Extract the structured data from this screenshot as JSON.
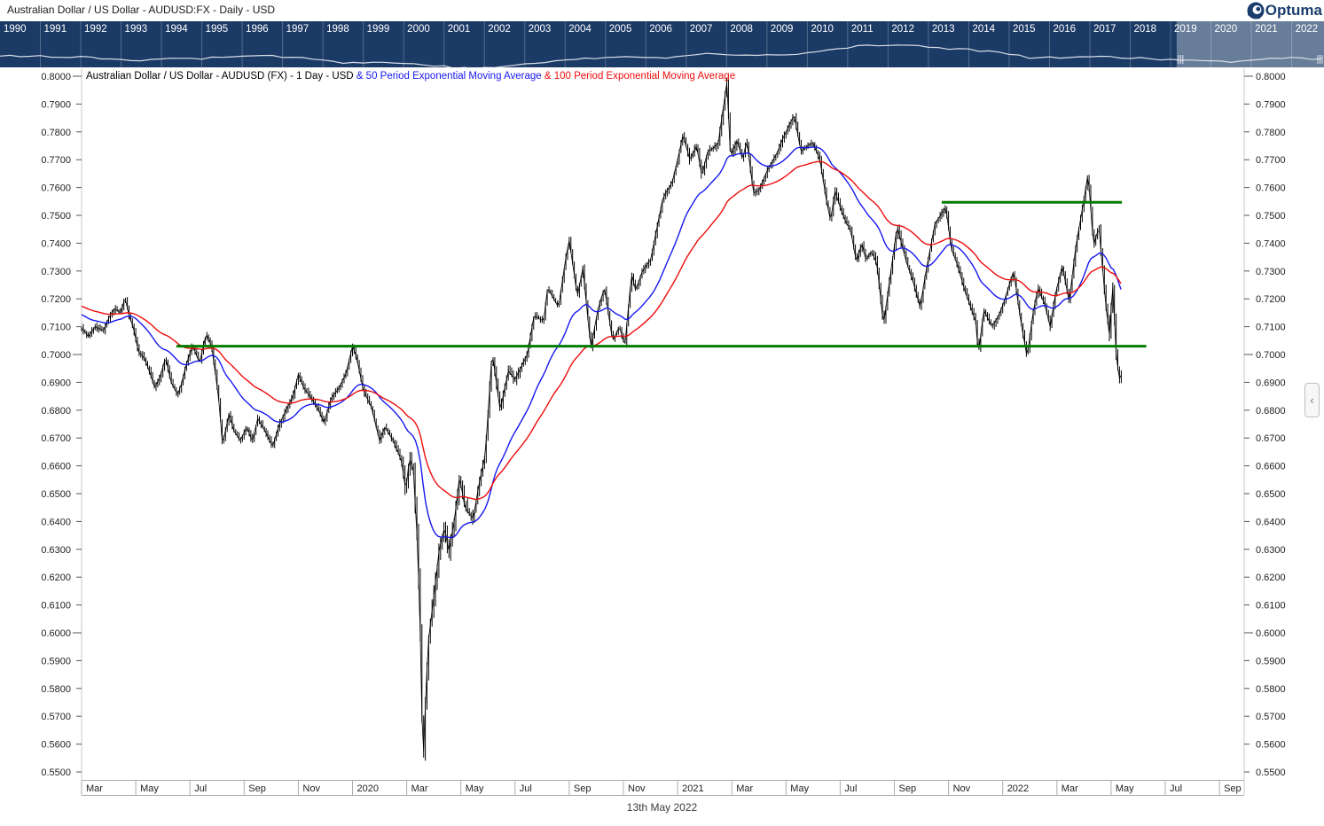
{
  "window": {
    "title": "Australian Dollar / US Dollar - AUDUSD:FX - Daily - USD",
    "logo_text": "Optuma"
  },
  "timeline": {
    "years": [
      1990,
      1991,
      1992,
      1993,
      1994,
      1995,
      1996,
      1997,
      1998,
      1999,
      2000,
      2001,
      2002,
      2003,
      2004,
      2005,
      2006,
      2007,
      2008,
      2009,
      2010,
      2011,
      2012,
      2013,
      2014,
      2015,
      2016,
      2017,
      2018,
      2019,
      2020,
      2021,
      2022
    ],
    "sparkline_yearly_values": [
      0.78,
      0.775,
      0.74,
      0.675,
      0.73,
      0.745,
      0.785,
      0.75,
      0.625,
      0.65,
      0.575,
      0.51,
      0.545,
      0.655,
      0.73,
      0.765,
      0.75,
      0.84,
      0.8,
      0.79,
      0.91,
      1.03,
      1.035,
      0.96,
      0.885,
      0.75,
      0.745,
      0.765,
      0.725,
      0.7,
      0.63,
      0.75,
      0.72
    ],
    "selection": {
      "start_year_fraction": 2019.15,
      "end_year_fraction": 2022.85
    },
    "colors": {
      "band": "#1b3a66",
      "separator": "rgba(255,255,255,0.25)",
      "sparkline": "#d9dee5",
      "highlight": "rgba(255,255,255,0.34)",
      "label": "#ffffff"
    }
  },
  "chart": {
    "title_segments": [
      {
        "text": "Australian Dollar / US Dollar - AUDUSD (FX) - 1 Day - USD ",
        "color": "#000000"
      },
      {
        "text": "& 50 Period Exponential Moving Average ",
        "color": "#1717ef"
      },
      {
        "text": "& 100 Period Exponential Moving Average",
        "color": "#ee0c0c"
      }
    ],
    "y_axis_labels": [
      "0.8000",
      "0.7900",
      "0.7800",
      "0.7700",
      "0.7600",
      "0.7500",
      "0.7400",
      "0.7300",
      "0.7200",
      "0.7100",
      "0.7000",
      "0.6900",
      "0.6800",
      "0.6700",
      "0.6600",
      "0.6500",
      "0.6400",
      "0.6300",
      "0.6200",
      "0.6100",
      "0.6000",
      "0.5900",
      "0.5800",
      "0.5700",
      "0.5600",
      "0.5500"
    ],
    "x_axis_labels": [
      {
        "m": 0,
        "label": "Mar"
      },
      {
        "m": 2,
        "label": "May"
      },
      {
        "m": 4,
        "label": "Jul"
      },
      {
        "m": 6,
        "label": "Sep"
      },
      {
        "m": 8,
        "label": "Nov"
      },
      {
        "m": 10,
        "label": "2020"
      },
      {
        "m": 12,
        "label": "Mar"
      },
      {
        "m": 14,
        "label": "May"
      },
      {
        "m": 16,
        "label": "Jul"
      },
      {
        "m": 18,
        "label": "Sep"
      },
      {
        "m": 20,
        "label": "Nov"
      },
      {
        "m": 22,
        "label": "2021"
      },
      {
        "m": 24,
        "label": "Mar"
      },
      {
        "m": 26,
        "label": "May"
      },
      {
        "m": 28,
        "label": "Jul"
      },
      {
        "m": 30,
        "label": "Sep"
      },
      {
        "m": 32,
        "label": "Nov"
      },
      {
        "m": 34,
        "label": "2022"
      },
      {
        "m": 36,
        "label": "Mar"
      },
      {
        "m": 38,
        "label": "May"
      },
      {
        "m": 40,
        "label": "Jul"
      },
      {
        "m": 42,
        "label": "Sep"
      }
    ],
    "footer_date": "13th May 2022",
    "colors": {
      "bars": "#000000",
      "ema50": "#1717ef",
      "ema100": "#ee0c0c",
      "level_line": "#007c00",
      "axis_text": "#222222",
      "axis_line": "#c8c8c8",
      "band_border": "#adadad"
    }
  },
  "side_button": {
    "chevron": "‹"
  },
  "chart_data": {
    "type": "line",
    "style": "daily OHLC bar chart (black) with EMA overlays",
    "instrument": "AUDUSD",
    "x_unit": "months since 2019-03-01",
    "ylim": [
      0.55,
      0.8
    ],
    "x_visible_range_months": [
      0,
      43.2
    ],
    "series": [
      {
        "name": "AUDUSD close (sampled)",
        "points": [
          [
            0,
            0.7095
          ],
          [
            0.25,
            0.7065
          ],
          [
            0.5,
            0.71
          ],
          [
            0.8,
            0.7085
          ],
          [
            1,
            0.713
          ],
          [
            1.2,
            0.7165
          ],
          [
            1.45,
            0.715
          ],
          [
            1.6,
            0.7205
          ],
          [
            1.75,
            0.714
          ],
          [
            1.9,
            0.71
          ],
          [
            2.1,
            0.701
          ],
          [
            2.3,
            0.699
          ],
          [
            2.5,
            0.694
          ],
          [
            2.7,
            0.688
          ],
          [
            2.9,
            0.692
          ],
          [
            3.1,
            0.699
          ],
          [
            3.3,
            0.69
          ],
          [
            3.55,
            0.6855
          ],
          [
            3.7,
            0.69
          ],
          [
            3.85,
            0.696
          ],
          [
            4.1,
            0.7035
          ],
          [
            4.35,
            0.697
          ],
          [
            4.6,
            0.7075
          ],
          [
            4.8,
            0.703
          ],
          [
            5.05,
            0.685
          ],
          [
            5.2,
            0.6677
          ],
          [
            5.45,
            0.679
          ],
          [
            5.6,
            0.673
          ],
          [
            5.85,
            0.669
          ],
          [
            6.1,
            0.674
          ],
          [
            6.3,
            0.6688
          ],
          [
            6.5,
            0.677
          ],
          [
            6.8,
            0.672
          ],
          [
            7.05,
            0.667
          ],
          [
            7.3,
            0.675
          ],
          [
            7.55,
            0.68
          ],
          [
            7.8,
            0.685
          ],
          [
            8,
            0.6929
          ],
          [
            8.2,
            0.688
          ],
          [
            8.5,
            0.684
          ],
          [
            8.75,
            0.68
          ],
          [
            8.95,
            0.6754
          ],
          [
            9.2,
            0.684
          ],
          [
            9.5,
            0.688
          ],
          [
            9.75,
            0.693
          ],
          [
            10,
            0.703
          ],
          [
            10.15,
            0.699
          ],
          [
            10.4,
            0.687
          ],
          [
            10.7,
            0.681
          ],
          [
            11,
            0.669
          ],
          [
            11.2,
            0.674
          ],
          [
            11.5,
            0.669
          ],
          [
            11.8,
            0.662
          ],
          [
            11.97,
            0.651
          ],
          [
            12.1,
            0.663
          ],
          [
            12.25,
            0.658
          ],
          [
            12.4,
            0.631
          ],
          [
            12.5,
            0.6
          ],
          [
            12.6,
            0.551
          ],
          [
            12.7,
            0.577
          ],
          [
            12.8,
            0.597
          ],
          [
            13,
            0.613
          ],
          [
            13.2,
            0.63
          ],
          [
            13.4,
            0.638
          ],
          [
            13.55,
            0.629
          ],
          [
            13.75,
            0.64
          ],
          [
            13.95,
            0.656
          ],
          [
            14.15,
            0.645
          ],
          [
            14.45,
            0.641
          ],
          [
            14.7,
            0.655
          ],
          [
            14.9,
            0.664
          ],
          [
            15.15,
            0.701
          ],
          [
            15.45,
            0.68
          ],
          [
            15.75,
            0.694
          ],
          [
            16,
            0.691
          ],
          [
            16.45,
            0.7
          ],
          [
            16.7,
            0.714
          ],
          [
            17.05,
            0.712
          ],
          [
            17.2,
            0.724
          ],
          [
            17.6,
            0.717
          ],
          [
            17.9,
            0.7365
          ],
          [
            18,
            0.741
          ],
          [
            18.3,
            0.721
          ],
          [
            18.5,
            0.731
          ],
          [
            18.8,
            0.702
          ],
          [
            19.05,
            0.716
          ],
          [
            19.3,
            0.724
          ],
          [
            19.6,
            0.705
          ],
          [
            19.85,
            0.71
          ],
          [
            20.05,
            0.703
          ],
          [
            20.3,
            0.729
          ],
          [
            20.45,
            0.723
          ],
          [
            20.7,
            0.73
          ],
          [
            21,
            0.734
          ],
          [
            21.45,
            0.756
          ],
          [
            21.8,
            0.762
          ],
          [
            22,
            0.77
          ],
          [
            22.2,
            0.779
          ],
          [
            22.45,
            0.77
          ],
          [
            22.7,
            0.775
          ],
          [
            22.9,
            0.764
          ],
          [
            23.1,
            0.773
          ],
          [
            23.3,
            0.774
          ],
          [
            23.5,
            0.776
          ],
          [
            23.82,
            0.798
          ],
          [
            23.95,
            0.771
          ],
          [
            24.2,
            0.777
          ],
          [
            24.4,
            0.77
          ],
          [
            24.55,
            0.777
          ],
          [
            24.8,
            0.758
          ],
          [
            25,
            0.759
          ],
          [
            25.3,
            0.766
          ],
          [
            25.65,
            0.772
          ],
          [
            25.9,
            0.778
          ],
          [
            26.3,
            0.786
          ],
          [
            26.55,
            0.773
          ],
          [
            26.8,
            0.775
          ],
          [
            27,
            0.776
          ],
          [
            27.25,
            0.77
          ],
          [
            27.5,
            0.755
          ],
          [
            27.65,
            0.748
          ],
          [
            27.8,
            0.759
          ],
          [
            28,
            0.753
          ],
          [
            28.15,
            0.749
          ],
          [
            28.4,
            0.744
          ],
          [
            28.6,
            0.733
          ],
          [
            28.8,
            0.74
          ],
          [
            28.95,
            0.734
          ],
          [
            29.15,
            0.737
          ],
          [
            29.35,
            0.733
          ],
          [
            29.6,
            0.7106
          ],
          [
            29.8,
            0.725
          ],
          [
            30.1,
            0.746
          ],
          [
            30.45,
            0.733
          ],
          [
            30.7,
            0.726
          ],
          [
            30.95,
            0.717
          ],
          [
            31.15,
            0.729
          ],
          [
            31.5,
            0.747
          ],
          [
            31.9,
            0.753
          ],
          [
            32.1,
            0.738
          ],
          [
            32.3,
            0.733
          ],
          [
            32.6,
            0.723
          ],
          [
            33,
            0.712
          ],
          [
            33.1,
            0.7
          ],
          [
            33.3,
            0.716
          ],
          [
            33.6,
            0.71
          ],
          [
            33.85,
            0.714
          ],
          [
            34.05,
            0.719
          ],
          [
            34.4,
            0.73
          ],
          [
            34.65,
            0.713
          ],
          [
            34.9,
            0.699
          ],
          [
            35.1,
            0.714
          ],
          [
            35.3,
            0.724
          ],
          [
            35.55,
            0.718
          ],
          [
            35.75,
            0.71
          ],
          [
            35.95,
            0.722
          ],
          [
            36.2,
            0.732
          ],
          [
            36.45,
            0.719
          ],
          [
            36.7,
            0.739
          ],
          [
            36.9,
            0.75
          ],
          [
            37.15,
            0.765
          ],
          [
            37.35,
            0.739
          ],
          [
            37.55,
            0.7458
          ],
          [
            37.8,
            0.718
          ],
          [
            37.95,
            0.706
          ],
          [
            38.05,
            0.7265
          ],
          [
            38.2,
            0.698
          ],
          [
            38.32,
            0.691
          ],
          [
            38.42,
            0.694
          ]
        ]
      },
      {
        "name": "50 Period Exponential Moving Average",
        "period": 50,
        "computed_from_close": true,
        "seed": 0.7145
      },
      {
        "name": "100 Period Exponential Moving Average",
        "period": 100,
        "computed_from_close": true,
        "seed": 0.7175
      }
    ],
    "horizontal_lines": [
      {
        "name": "resistance",
        "price": 0.7547,
        "from_m": 31.75,
        "to_m": 38.4
      },
      {
        "name": "support",
        "price": 0.703,
        "from_m": 3.5,
        "to_m": 39.3
      }
    ],
    "last_date_label": "13th May 2022"
  }
}
